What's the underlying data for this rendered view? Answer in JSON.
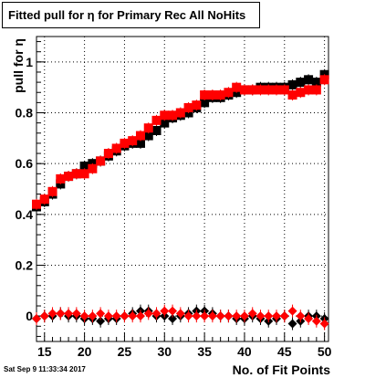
{
  "title": "Fitted pull for  η for Primary Rec All NoHits",
  "timestamp": "Sat Sep  9 11:33:34 2017",
  "chart_data": {
    "type": "scatter",
    "title": "Fitted pull for  η for Primary Rec All NoHits",
    "xlabel": "No. of Fit Points",
    "ylabel": "pull for  η",
    "xlim": [
      14,
      50.5
    ],
    "ylim": [
      -0.1,
      1.1
    ],
    "grid": true,
    "x_ticks": [
      15,
      20,
      25,
      30,
      35,
      40,
      45,
      50
    ],
    "y_ticks": [
      0,
      0.2,
      0.4,
      0.6,
      0.8,
      1
    ],
    "x": [
      14,
      15,
      16,
      17,
      18,
      19,
      20,
      21,
      22,
      23,
      24,
      25,
      26,
      27,
      28,
      29,
      30,
      31,
      32,
      33,
      34,
      35,
      36,
      37,
      38,
      39,
      40,
      41,
      42,
      43,
      44,
      45,
      46,
      47,
      48,
      49,
      50
    ],
    "series": [
      {
        "color": "#000000",
        "marker": "square",
        "values": [
          0.43,
          0.45,
          0.48,
          0.52,
          0.55,
          0.56,
          0.59,
          0.6,
          0.61,
          0.63,
          0.65,
          0.67,
          0.68,
          0.68,
          0.71,
          0.73,
          0.76,
          0.78,
          0.79,
          0.8,
          0.82,
          0.84,
          0.86,
          0.86,
          0.87,
          0.88,
          0.89,
          0.89,
          0.9,
          0.9,
          0.9,
          0.9,
          0.91,
          0.92,
          0.93,
          0.92,
          0.95
        ]
      },
      {
        "color": "#ff0000",
        "marker": "square",
        "values": [
          0.44,
          0.46,
          0.49,
          0.54,
          0.55,
          0.56,
          0.56,
          0.58,
          0.61,
          0.64,
          0.66,
          0.68,
          0.69,
          0.71,
          0.74,
          0.77,
          0.79,
          0.79,
          0.8,
          0.82,
          0.83,
          0.87,
          0.87,
          0.87,
          0.88,
          0.9,
          0.89,
          0.89,
          0.89,
          0.89,
          0.89,
          0.89,
          0.87,
          0.88,
          0.89,
          0.89,
          0.93
        ]
      },
      {
        "color": "#000000",
        "marker": "diamond",
        "values": [
          -0.01,
          0.0,
          0.0,
          0.01,
          0.0,
          0.0,
          -0.01,
          -0.01,
          -0.02,
          -0.01,
          -0.01,
          0.0,
          0.01,
          0.02,
          0.02,
          0.0,
          0.0,
          -0.01,
          0.0,
          0.01,
          0.02,
          0.02,
          0.01,
          0.0,
          0.0,
          -0.01,
          -0.01,
          0.0,
          -0.01,
          -0.02,
          -0.01,
          0.0,
          -0.03,
          -0.02,
          0.0,
          0.0,
          -0.01
        ]
      },
      {
        "color": "#ff0000",
        "marker": "diamond",
        "values": [
          -0.01,
          0.0,
          0.01,
          0.01,
          0.01,
          0.01,
          0.0,
          0.0,
          0.01,
          0.0,
          0.0,
          0.0,
          0.0,
          0.0,
          0.01,
          0.01,
          0.02,
          0.02,
          0.01,
          0.0,
          0.0,
          0.0,
          0.0,
          0.0,
          0.0,
          0.0,
          0.0,
          0.01,
          0.0,
          0.0,
          0.0,
          0.0,
          0.02,
          0.0,
          -0.01,
          -0.02,
          -0.03
        ]
      }
    ]
  }
}
